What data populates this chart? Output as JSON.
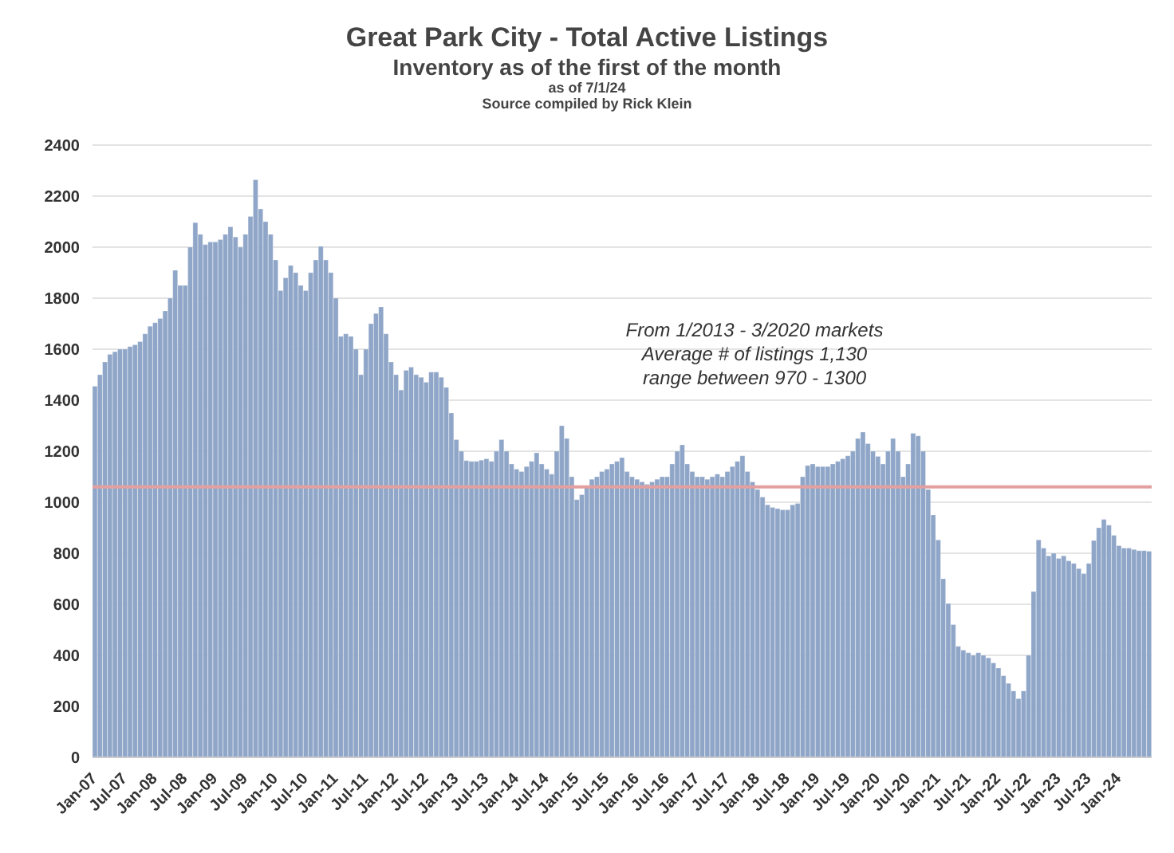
{
  "chart_data": {
    "type": "bar",
    "title": "Great Park City - Total Active Listings",
    "subtitle": "Inventory as of the first of the month",
    "annotations": [
      "as of 7/1/24",
      "Source compiled by Rick Klein",
      "From 1/2013 - 3/2020 markets",
      "Average # of listings 1,130",
      "range between 970 - 1300"
    ],
    "categories": [
      "Jan-07",
      null,
      null,
      null,
      null,
      null,
      "Jul-07",
      null,
      null,
      null,
      null,
      null,
      "Jan-08",
      null,
      null,
      null,
      null,
      null,
      "Jul-08",
      null,
      null,
      null,
      null,
      null,
      "Jan-09",
      null,
      null,
      null,
      null,
      null,
      "Jul-09",
      null,
      null,
      null,
      null,
      null,
      "Jan-10",
      null,
      null,
      null,
      null,
      null,
      "Jul-10",
      null,
      null,
      null,
      null,
      null,
      "Jan-11",
      null,
      null,
      null,
      null,
      null,
      "Jul-11",
      null,
      null,
      null,
      null,
      null,
      "Jan-12",
      null,
      null,
      null,
      null,
      null,
      "Jul-12",
      null,
      null,
      null,
      null,
      null,
      "Jan-13",
      null,
      null,
      null,
      null,
      null,
      "Jul-13",
      null,
      null,
      null,
      null,
      null,
      "Jan-14",
      null,
      null,
      null,
      null,
      null,
      "Jul-14",
      null,
      null,
      null,
      null,
      null,
      "Jan-15",
      null,
      null,
      null,
      null,
      null,
      "Jul-15",
      null,
      null,
      null,
      null,
      null,
      "Jan-16",
      null,
      null,
      null,
      null,
      null,
      "Jul-16",
      null,
      null,
      null,
      null,
      null,
      "Jan-17",
      null,
      null,
      null,
      null,
      null,
      "Jul-17",
      null,
      null,
      null,
      null,
      null,
      "Jan-18",
      null,
      null,
      null,
      null,
      null,
      "Jul-18",
      null,
      null,
      null,
      null,
      null,
      "Jan-19",
      null,
      null,
      null,
      null,
      null,
      "Jul-19",
      null,
      null,
      null,
      null,
      null,
      "Jan-20",
      null,
      null,
      null,
      null,
      null,
      "Jul-20",
      null,
      null,
      null,
      null,
      null,
      "Jan-21",
      null,
      null,
      null,
      null,
      null,
      "Jul-21",
      null,
      null,
      null,
      null,
      null,
      "Jan-22",
      null,
      null,
      null,
      null,
      null,
      "Jul-22",
      null,
      null,
      null,
      null,
      null,
      "Jan-23",
      null,
      null,
      null,
      null,
      null,
      "Jul-23",
      null,
      null,
      null,
      null,
      null,
      "Jan-24",
      null,
      null,
      null,
      null,
      null,
      null
    ],
    "values": [
      1455,
      1500,
      1550,
      1580,
      1590,
      1600,
      1600,
      1610,
      1617,
      1630,
      1660,
      1690,
      1704,
      1720,
      1750,
      1800,
      1909,
      1850,
      1850,
      2000,
      2096,
      2050,
      2010,
      2020,
      2020,
      2030,
      2050,
      2080,
      2040,
      2000,
      2050,
      2120,
      2264,
      2150,
      2100,
      2050,
      1950,
      1830,
      1880,
      1928,
      1900,
      1850,
      1830,
      1900,
      1950,
      2003,
      1950,
      1900,
      1800,
      1650,
      1660,
      1650,
      1600,
      1500,
      1600,
      1700,
      1740,
      1766,
      1660,
      1550,
      1500,
      1440,
      1517,
      1530,
      1500,
      1490,
      1470,
      1510,
      1510,
      1490,
      1450,
      1350,
      1245,
      1200,
      1163,
      1160,
      1160,
      1165,
      1170,
      1160,
      1200,
      1245,
      1200,
      1150,
      1130,
      1120,
      1140,
      1160,
      1194,
      1150,
      1130,
      1110,
      1200,
      1300,
      1250,
      1100,
      1010,
      1030,
      1060,
      1090,
      1100,
      1120,
      1130,
      1150,
      1160,
      1175,
      1120,
      1100,
      1090,
      1080,
      1070,
      1080,
      1090,
      1100,
      1100,
      1150,
      1200,
      1225,
      1150,
      1120,
      1100,
      1100,
      1090,
      1100,
      1110,
      1100,
      1120,
      1140,
      1160,
      1182,
      1120,
      1080,
      1050,
      1020,
      990,
      980,
      975,
      970,
      970,
      990,
      995,
      1100,
      1144,
      1150,
      1140,
      1140,
      1140,
      1150,
      1160,
      1170,
      1182,
      1200,
      1250,
      1275,
      1230,
      1200,
      1180,
      1150,
      1200,
      1250,
      1200,
      1100,
      1150,
      1270,
      1260,
      1200,
      1050,
      950,
      852,
      700,
      603,
      520,
      435,
      420,
      410,
      400,
      410,
      400,
      390,
      370,
      350,
      320,
      290,
      260,
      230,
      260,
      400,
      650,
      852,
      820,
      790,
      800,
      780,
      790,
      770,
      760,
      740,
      720,
      760,
      850,
      900,
      933,
      910,
      870,
      830,
      820,
      820,
      815,
      810,
      810,
      808
    ],
    "color": "#8fa6c8",
    "ylim": [
      0,
      2400
    ],
    "yticks": [
      0,
      200,
      400,
      600,
      800,
      1000,
      1200,
      1400,
      1600,
      1800,
      2000,
      2200,
      2400
    ],
    "grid": "y",
    "ref_lines": [
      {
        "axis": "y",
        "value": 1060,
        "color": "#e2a0a0"
      }
    ]
  }
}
